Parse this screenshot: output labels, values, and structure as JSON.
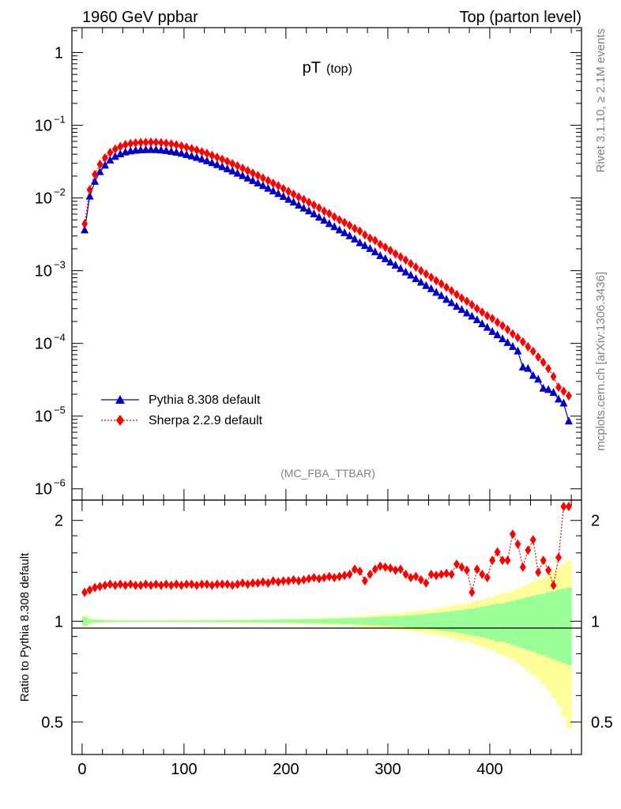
{
  "header": {
    "left": "1960 GeV ppbar",
    "right": "Top (parton level)"
  },
  "side_labels": {
    "top": "Rivet 3.1.10, ≥ 2.1M events",
    "bottom": "mcplots.cern.ch [arXiv:1306.3436]"
  },
  "chart_data": [
    {
      "type": "line",
      "title": "pT",
      "title_sub": "(top)",
      "annotation": "(MC_FBA_TTBAR)",
      "xlim": [
        -10,
        490
      ],
      "ylog": true,
      "ylim": [
        7e-07,
        2.2
      ],
      "yticks": [
        {
          "v": 1,
          "base": "1",
          "exp": ""
        },
        {
          "v": 0.1,
          "base": "10",
          "exp": "−1"
        },
        {
          "v": 0.01,
          "base": "10",
          "exp": "−2"
        },
        {
          "v": 0.001,
          "base": "10",
          "exp": "−3"
        },
        {
          "v": 0.0001,
          "base": "10",
          "exp": "−4"
        },
        {
          "v": 1e-05,
          "base": "10",
          "exp": "−5"
        },
        {
          "v": 1e-06,
          "base": "10",
          "exp": "−6"
        }
      ],
      "legend_position": "lower-left",
      "x": [
        2.5,
        7.5,
        12.5,
        17.5,
        22.5,
        27.5,
        32.5,
        37.5,
        42.5,
        47.5,
        52.5,
        57.5,
        62.5,
        67.5,
        72.5,
        77.5,
        82.5,
        87.5,
        92.5,
        97.5,
        102.5,
        107.5,
        112.5,
        117.5,
        122.5,
        127.5,
        132.5,
        137.5,
        142.5,
        147.5,
        152.5,
        157.5,
        162.5,
        167.5,
        172.5,
        177.5,
        182.5,
        187.5,
        192.5,
        197.5,
        202.5,
        207.5,
        212.5,
        217.5,
        222.5,
        227.5,
        232.5,
        237.5,
        242.5,
        247.5,
        252.5,
        257.5,
        262.5,
        267.5,
        272.5,
        277.5,
        282.5,
        287.5,
        292.5,
        297.5,
        302.5,
        307.5,
        312.5,
        317.5,
        322.5,
        327.5,
        332.5,
        337.5,
        342.5,
        347.5,
        352.5,
        357.5,
        362.5,
        367.5,
        372.5,
        377.5,
        382.5,
        387.5,
        392.5,
        397.5,
        402.5,
        407.5,
        412.5,
        417.5,
        422.5,
        427.5,
        432.5,
        437.5,
        442.5,
        447.5,
        452.5,
        457.5,
        462.5,
        467.5,
        472.5,
        477.5
      ],
      "series": [
        {
          "name": "Pythia 8.308 default",
          "color": "#0000cc",
          "marker": "triangle",
          "values": [
            0.0036,
            0.0105,
            0.0168,
            0.0228,
            0.028,
            0.033,
            0.037,
            0.04,
            0.0425,
            0.044,
            0.045,
            0.0455,
            0.0458,
            0.046,
            0.0458,
            0.0452,
            0.0445,
            0.0435,
            0.0422,
            0.0408,
            0.0392,
            0.0375,
            0.0358,
            0.034,
            0.0322,
            0.0303,
            0.0285,
            0.0267,
            0.025,
            0.0233,
            0.0217,
            0.0201,
            0.0186,
            0.0172,
            0.0159,
            0.0147,
            0.0135,
            0.0124,
            0.0114,
            0.0104,
            0.0095,
            0.0087,
            0.0079,
            0.0072,
            0.0066,
            0.006,
            0.0054,
            0.0049,
            0.0044,
            0.004,
            0.0036,
            0.0033,
            0.003,
            0.0027,
            0.0024,
            0.0022,
            0.002,
            0.0018,
            0.0016,
            0.00145,
            0.0013,
            0.00118,
            0.00106,
            0.00095,
            0.00086,
            0.00077,
            0.00069,
            0.00062,
            0.00056,
            0.0005,
            0.00045,
            0.0004,
            0.00036,
            0.00032,
            0.00029,
            0.00026,
            0.000235,
            0.00021,
            0.000185,
            0.000165,
            0.000145,
            0.00013,
            0.000115,
            0.000102,
            9e-05,
            7.8e-05,
            4.7e-05,
            4.5e-05,
            3.6e-05,
            3.2e-05,
            2.4e-05,
            2.3e-05,
            2.1e-05,
            1.7e-05,
            1.5e-05,
            8.5e-06
          ]
        },
        {
          "name": "Sherpa 2.2.9 default",
          "color": "#ff0000",
          "marker": "diamond",
          "values": [
            0.0044,
            0.013,
            0.021,
            0.029,
            0.0356,
            0.042,
            0.047,
            0.051,
            0.054,
            0.056,
            0.0572,
            0.058,
            0.0583,
            0.0585,
            0.0583,
            0.0575,
            0.0566,
            0.0553,
            0.0537,
            0.0519,
            0.0498,
            0.0477,
            0.0455,
            0.0432,
            0.0409,
            0.0385,
            0.0362,
            0.034,
            0.0318,
            0.0296,
            0.0276,
            0.0256,
            0.0237,
            0.0219,
            0.0203,
            0.0188,
            0.0173,
            0.0159,
            0.0147,
            0.0134,
            0.0123,
            0.0113,
            0.0103,
            0.0095,
            0.0087,
            0.008,
            0.0073,
            0.0066,
            0.0061,
            0.0055,
            0.005,
            0.0046,
            0.0042,
            0.0038,
            0.0035,
            0.0031,
            0.0028,
            0.0026,
            0.0023,
            0.0021,
            0.0019,
            0.0017,
            0.00155,
            0.0014,
            0.00125,
            0.00112,
            0.001,
            0.0009,
            0.00081,
            0.00073,
            0.00066,
            0.00059,
            0.00053,
            0.00047,
            0.00042,
            0.00038,
            0.00034,
            0.0003,
            0.00027,
            0.00024,
            0.00022,
            0.000195,
            0.000175,
            0.000155,
            0.000135,
            0.00012,
            0.000105,
            9e-05,
            7.8e-05,
            6.5e-05,
            5.5e-05,
            4.5e-05,
            3.5e-05,
            2.5e-05,
            2.2e-05,
            1.9e-05
          ]
        }
      ]
    },
    {
      "type": "line",
      "ylabel": "Ratio to Pythia 8.308 default",
      "xlim": [
        -10,
        490
      ],
      "ylim": [
        0.4,
        2.3
      ],
      "ylog": true,
      "yticks": [
        {
          "v": 0.5,
          "label": "0.5"
        },
        {
          "v": 1,
          "label": "1"
        },
        {
          "v": 2,
          "label": "2"
        }
      ],
      "xticks": [
        0,
        100,
        200,
        300,
        400
      ],
      "xtick_labels": [
        "0",
        "100",
        "200",
        "300",
        "400"
      ],
      "reference": 1,
      "band_colors": {
        "inner": "#99ff99",
        "outer": "#ffff99"
      },
      "band_inner_halfwidth": [
        0.03,
        0.015,
        0.01,
        0.008,
        0.007,
        0.006,
        0.006,
        0.005,
        0.005,
        0.005,
        0.005,
        0.005,
        0.005,
        0.005,
        0.005,
        0.005,
        0.005,
        0.005,
        0.005,
        0.005,
        0.006,
        0.006,
        0.006,
        0.006,
        0.006,
        0.006,
        0.007,
        0.007,
        0.007,
        0.007,
        0.008,
        0.008,
        0.008,
        0.009,
        0.009,
        0.009,
        0.01,
        0.01,
        0.011,
        0.011,
        0.012,
        0.012,
        0.013,
        0.013,
        0.014,
        0.015,
        0.015,
        0.016,
        0.017,
        0.018,
        0.019,
        0.02,
        0.021,
        0.022,
        0.023,
        0.025,
        0.026,
        0.028,
        0.03,
        0.031,
        0.033,
        0.035,
        0.037,
        0.04,
        0.042,
        0.045,
        0.048,
        0.051,
        0.055,
        0.058,
        0.062,
        0.066,
        0.071,
        0.076,
        0.08,
        0.086,
        0.092,
        0.098,
        0.105,
        0.112,
        0.12,
        0.13,
        0.13,
        0.14,
        0.15,
        0.16,
        0.17,
        0.18,
        0.19,
        0.2,
        0.21,
        0.22,
        0.23,
        0.24,
        0.25,
        0.26
      ],
      "band_outer_halfwidth": [
        0.04,
        0.02,
        0.015,
        0.012,
        0.01,
        0.009,
        0.008,
        0.008,
        0.007,
        0.007,
        0.007,
        0.007,
        0.007,
        0.007,
        0.007,
        0.007,
        0.007,
        0.007,
        0.008,
        0.008,
        0.008,
        0.008,
        0.008,
        0.009,
        0.009,
        0.009,
        0.01,
        0.01,
        0.01,
        0.011,
        0.011,
        0.012,
        0.012,
        0.013,
        0.013,
        0.014,
        0.014,
        0.015,
        0.016,
        0.017,
        0.017,
        0.018,
        0.019,
        0.02,
        0.021,
        0.022,
        0.023,
        0.024,
        0.026,
        0.027,
        0.029,
        0.03,
        0.032,
        0.034,
        0.036,
        0.038,
        0.04,
        0.043,
        0.046,
        0.049,
        0.052,
        0.055,
        0.058,
        0.062,
        0.066,
        0.07,
        0.075,
        0.08,
        0.085,
        0.09,
        0.096,
        0.1,
        0.11,
        0.12,
        0.13,
        0.13,
        0.14,
        0.15,
        0.16,
        0.17,
        0.18,
        0.2,
        0.21,
        0.22,
        0.23,
        0.25,
        0.27,
        0.29,
        0.31,
        0.33,
        0.35,
        0.38,
        0.41,
        0.44,
        0.48,
        0.52
      ],
      "series": [
        {
          "name": "Sherpa 2.2.9 default",
          "color": "#ff0000",
          "marker": "diamond",
          "values": [
            1.22,
            1.24,
            1.26,
            1.27,
            1.28,
            1.29,
            1.28,
            1.29,
            1.28,
            1.29,
            1.28,
            1.28,
            1.29,
            1.28,
            1.29,
            1.28,
            1.29,
            1.28,
            1.29,
            1.28,
            1.29,
            1.29,
            1.28,
            1.29,
            1.29,
            1.28,
            1.29,
            1.29,
            1.29,
            1.28,
            1.29,
            1.3,
            1.29,
            1.3,
            1.3,
            1.31,
            1.3,
            1.32,
            1.31,
            1.32,
            1.32,
            1.33,
            1.32,
            1.33,
            1.34,
            1.35,
            1.34,
            1.35,
            1.36,
            1.35,
            1.36,
            1.37,
            1.38,
            1.43,
            1.41,
            1.32,
            1.38,
            1.43,
            1.46,
            1.45,
            1.44,
            1.42,
            1.43,
            1.38,
            1.35,
            1.36,
            1.33,
            1.3,
            1.38,
            1.37,
            1.38,
            1.39,
            1.38,
            1.48,
            1.45,
            1.42,
            1.22,
            1.43,
            1.38,
            1.35,
            1.52,
            1.61,
            1.52,
            1.52,
            1.82,
            1.7,
            1.45,
            1.63,
            1.75,
            1.4,
            1.52,
            1.42,
            1.28,
            1.55,
            2.2,
            2.2
          ]
        }
      ]
    }
  ]
}
